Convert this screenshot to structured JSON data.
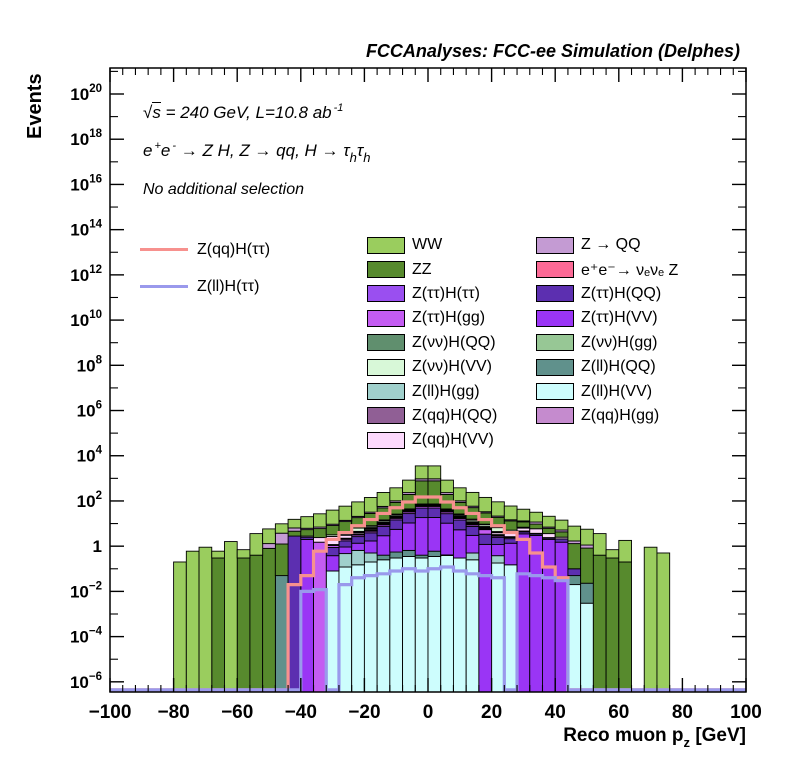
{
  "page": {
    "title": "FCCAnalyses: FCC-ee Simulation (Delphes)"
  },
  "annotations": {
    "line1": {
      "radical": "√",
      "s": "s",
      "rest": " = 240 GeV, L=10.8 ab",
      "exp": "-1"
    },
    "line2": {
      "p1": "e",
      "s1": "+",
      "p2": "e",
      "s2": "-",
      "p3": " → Z H, Z  → qq, H  → τ",
      "s3": "h",
      "p4": "τ",
      "s4": "h"
    },
    "line3": "No additional selection"
  },
  "axes": {
    "y_label": "Events",
    "x_label": {
      "main": "Reco muon p",
      "sub": "z",
      "unit": " [GeV]"
    }
  },
  "legend_lines": [
    {
      "label": "Z(qq)H(ττ)",
      "color": "#f7918e"
    },
    {
      "label": "Z(ll)H(ττ)",
      "color": "#9a99ec"
    }
  ],
  "legend_cols": [
    [
      {
        "label": "WW",
        "color": "#9acd5e"
      },
      {
        "label": "ZZ",
        "color": "#578a2d"
      },
      {
        "label": "Z(ττ)H(ττ)",
        "color": "#9a4ff0"
      },
      {
        "label": "Z(ττ)H(gg)",
        "color": "#c45cf2"
      },
      {
        "label": "Z(νν)H(QQ)",
        "color": "#608f6e"
      },
      {
        "label": "Z(νν)H(VV)",
        "color": "#d8f8d8"
      },
      {
        "label": "Z(ll)H(gg)",
        "color": "#a0d0cc"
      },
      {
        "label": "Z(qq)H(QQ)",
        "color": "#905f95"
      },
      {
        "label": "Z(qq)H(VV)",
        "color": "#fcd9fc"
      }
    ],
    [
      {
        "label": "Z → QQ",
        "color": "#c49bd3"
      },
      {
        "label": "e⁺e⁻→ νₑνₑ Z",
        "color": "#fc6a96"
      },
      {
        "label": "Z(ττ)H(QQ)",
        "color": "#5c2fb0"
      },
      {
        "label": "Z(ττ)H(VV)",
        "color": "#9a35f5"
      },
      {
        "label": "Z(νν)H(gg)",
        "color": "#97c795"
      },
      {
        "label": "Z(ll)H(QQ)",
        "color": "#60918c"
      },
      {
        "label": "Z(ll)H(VV)",
        "color": "#cdfdfd"
      },
      {
        "label": "Z(qq)H(gg)",
        "color": "#c58bce"
      }
    ]
  ],
  "chart_data": {
    "type": "bar",
    "subtype": "stacked-histogram-log-y",
    "title": "FCCAnalyses: FCC-ee Simulation (Delphes)",
    "xlabel": "Reco muon p_z [GeV]",
    "ylabel": "Events",
    "x_range": [
      -100,
      100
    ],
    "y_range_exp": [
      -6.45,
      21.15
    ],
    "grid": false,
    "bins": {
      "start": -100,
      "width": 4,
      "count": 50
    },
    "x_major_ticks": [
      -100,
      -80,
      -60,
      -40,
      -20,
      0,
      20,
      40,
      60,
      80,
      100
    ],
    "x_minor_step": 4,
    "y_label_exponents": [
      -6,
      -4,
      -2,
      0,
      2,
      4,
      6,
      8,
      10,
      12,
      14,
      16,
      18,
      20
    ],
    "series": [
      {
        "name": "Z(ll)H(VV)",
        "color": "#cdfdfd",
        "values": [
          0,
          0,
          0,
          0,
          0,
          0,
          0,
          0,
          0,
          0,
          0,
          0,
          0,
          0,
          0,
          0,
          0,
          0.08,
          0.12,
          0.15,
          0.2,
          0.25,
          0.3,
          0.35,
          0.3,
          0.35,
          0.4,
          0.3,
          0.25,
          0,
          0.18,
          0.15,
          0,
          0,
          0,
          0,
          0.02,
          0.003,
          0,
          0,
          0,
          0,
          0,
          0,
          0,
          0,
          0,
          0,
          0,
          0
        ]
      },
      {
        "name": "Z(ll)H(QQ)",
        "color": "#60918c",
        "values": [
          0,
          0,
          0,
          0,
          0,
          0,
          0,
          0,
          0,
          0,
          0,
          0,
          0,
          0.05,
          0,
          0,
          0,
          0,
          0,
          0,
          0,
          0.15,
          0.25,
          0.3,
          0.1,
          0.25,
          0.01,
          0,
          0,
          0,
          0,
          0,
          0,
          0,
          0,
          0,
          0.03,
          0.02,
          0,
          0,
          0,
          0,
          0,
          0,
          0,
          0,
          0,
          0,
          0,
          0
        ]
      },
      {
        "name": "Z(ll)H(gg)",
        "color": "#a0d0cc",
        "values": [
          0,
          0,
          0,
          0,
          0,
          0,
          0,
          0,
          0,
          0,
          0,
          0,
          0,
          0,
          0,
          0,
          0,
          0,
          0.35,
          0.5,
          0.3,
          0,
          0,
          0,
          0,
          0,
          0,
          0,
          0.25,
          0,
          0.2,
          0,
          0,
          0,
          0,
          0,
          0,
          0,
          0,
          0,
          0,
          0,
          0,
          0,
          0,
          0,
          0,
          0,
          0,
          0
        ]
      },
      {
        "name": "Z(ττ)H(VV)",
        "color": "#9a35f5",
        "values": [
          0,
          0,
          0,
          0,
          0,
          0,
          0,
          0,
          0,
          0,
          0,
          0,
          0,
          0,
          0,
          2,
          0,
          0.3,
          0.45,
          0.7,
          1.2,
          2.5,
          5,
          10,
          18,
          18,
          10,
          5,
          2.5,
          1.2,
          0.8,
          1.2,
          3.5,
          3,
          2,
          1.5,
          0,
          0,
          0,
          0,
          0,
          0,
          0,
          0,
          0,
          0,
          0,
          0,
          0,
          0
        ]
      },
      {
        "name": "Z(ττ)H(QQ)",
        "color": "#5c2fb0",
        "values": [
          0,
          0,
          0,
          0,
          0,
          0,
          0,
          0,
          0,
          0,
          0,
          0,
          0,
          0,
          2.8,
          0.5,
          0,
          0.5,
          0.8,
          1.3,
          2.2,
          4.5,
          9,
          17,
          30,
          30,
          17,
          9,
          4.5,
          2.2,
          1.3,
          0.8,
          0.8,
          0.5,
          0.3,
          0.6,
          0.05,
          0,
          0,
          0,
          0,
          0,
          0,
          0,
          0,
          0,
          0,
          0,
          0,
          0
        ]
      },
      {
        "name": "Z(ττ)H(gg)",
        "color": "#c45cf2",
        "values": [
          0,
          0,
          0,
          0,
          0,
          0,
          0,
          0,
          0,
          0,
          0,
          0,
          0,
          0,
          0,
          0,
          1.5,
          0.2,
          0.3,
          0.45,
          0.7,
          1.3,
          2.5,
          5,
          9,
          9,
          5,
          2.5,
          1.3,
          2,
          0.35,
          0.25,
          0.3,
          0.2,
          0.1,
          0,
          0,
          0,
          0,
          0,
          0,
          0,
          0,
          0,
          0,
          0,
          0,
          0,
          0,
          0
        ]
      },
      {
        "name": "Z(ττ)H(ττ)",
        "color": "#9a4ff0",
        "values": [
          0,
          0,
          0,
          0,
          0,
          0,
          0,
          0,
          0,
          0,
          0,
          0,
          0,
          0,
          0,
          0,
          0,
          0.1,
          0.15,
          0.2,
          0.35,
          0.7,
          1.3,
          2.5,
          5,
          5,
          2.5,
          1.3,
          0.7,
          0.35,
          0.2,
          0.15,
          0.1,
          0,
          0,
          0,
          0,
          0,
          0,
          0,
          0,
          0,
          0,
          0,
          0,
          0,
          0,
          0,
          0,
          0
        ]
      },
      {
        "name": "Z(qq)H(gg)",
        "color": "#c58bce",
        "values": [
          0,
          0,
          0,
          0,
          0,
          0,
          0,
          0,
          0,
          0,
          0,
          0,
          0,
          0,
          0,
          0,
          0,
          0,
          0,
          0.1,
          0.15,
          0.25,
          0.4,
          0.55,
          0.75,
          0.75,
          0.55,
          1.2,
          0.3,
          0.15,
          0.1,
          0,
          0,
          0,
          0,
          0,
          0,
          0,
          0,
          0,
          0,
          0,
          0,
          0,
          0,
          0,
          0,
          0,
          0,
          0
        ]
      },
      {
        "name": "Z(qq)H(QQ)",
        "color": "#905f95",
        "values": [
          0,
          0,
          0,
          0,
          0,
          0,
          0,
          0,
          0,
          0,
          0,
          0,
          0,
          0,
          0,
          0,
          0,
          0,
          0.08,
          0.12,
          0.2,
          0.3,
          0.5,
          0.7,
          1,
          1,
          0.7,
          0.5,
          0.3,
          0.2,
          0.12,
          0.08,
          0,
          0,
          0,
          0,
          0,
          0,
          0,
          0,
          0,
          0,
          0,
          0,
          0,
          0,
          0,
          0,
          0,
          0
        ]
      },
      {
        "name": "Z(qq)H(VV)",
        "color": "#fcd9fc",
        "values": [
          0,
          0,
          0,
          0,
          0,
          0,
          0,
          0,
          0,
          0,
          0,
          0,
          0,
          0,
          0,
          0.3,
          0.9,
          1.5,
          0.8,
          0.5,
          0.6,
          0.8,
          1.1,
          1.5,
          2,
          2,
          1.5,
          1.1,
          0.8,
          0.6,
          0.7,
          1.1,
          1.6,
          2.2,
          1.2,
          0.4,
          0,
          0,
          0,
          0,
          0,
          0,
          0,
          0,
          0,
          0,
          0,
          0,
          0,
          0
        ]
      },
      {
        "name": "Z(νν)H(gg)",
        "color": "#97c795",
        "values": [
          0,
          0,
          0,
          0,
          0,
          0,
          0,
          0,
          0,
          0,
          0,
          0,
          0,
          0,
          0,
          0,
          0,
          0,
          0.2,
          0.3,
          0.45,
          0.7,
          1,
          1.5,
          2,
          1.8,
          1.3,
          0.9,
          0.6,
          0.4,
          0.28,
          0.18,
          0,
          0,
          0,
          0,
          0,
          0,
          0,
          0,
          0,
          0,
          0,
          0,
          0,
          0,
          0,
          0,
          0,
          0
        ]
      },
      {
        "name": "Z(νν)H(QQ)",
        "color": "#608f6e",
        "values": [
          0,
          0,
          0,
          0,
          0,
          0,
          0,
          0,
          0,
          0,
          0,
          0,
          0,
          0,
          0,
          0,
          0,
          0,
          0,
          0.2,
          0.3,
          0.5,
          0.75,
          1.1,
          1.5,
          1.5,
          1.1,
          0.75,
          0.5,
          0.3,
          0.2,
          0,
          0,
          0,
          0,
          0,
          0,
          0,
          0,
          0,
          0,
          0,
          0,
          0,
          0,
          0,
          0,
          0,
          0,
          0
        ]
      },
      {
        "name": "Z(νν)H(VV)",
        "color": "#d8f8d8",
        "values": [
          0,
          0,
          0,
          0,
          0,
          0,
          0,
          0,
          0,
          0,
          0,
          0,
          0,
          0,
          0,
          0,
          0,
          0.5,
          1,
          1.8,
          1.2,
          2,
          3,
          2,
          2.8,
          2.8,
          2,
          3.2,
          2.2,
          1.5,
          2.4,
          1.2,
          0.6,
          0,
          0,
          0,
          0,
          0,
          0,
          0,
          0,
          0,
          0,
          0,
          0,
          0,
          0,
          0,
          0,
          0
        ]
      },
      {
        "name": "e+e-→ νeνe Z",
        "color": "#fc6a96",
        "values": [
          0,
          0,
          0,
          0,
          0,
          0,
          0,
          0,
          0,
          0,
          0,
          0,
          0,
          0,
          0,
          0,
          0,
          0,
          0,
          0,
          0.2,
          0.5,
          1.2,
          2,
          1,
          1.2,
          2.2,
          0.8,
          1.5,
          0.5,
          0.15,
          0,
          0,
          0,
          0,
          0,
          0,
          0,
          0,
          0,
          0,
          0,
          0,
          0,
          0,
          0,
          0,
          0,
          0,
          0
        ]
      },
      {
        "name": "ZZ",
        "color": "#578a2d",
        "values": [
          0,
          0,
          0,
          0,
          0,
          0,
          0,
          0,
          0.3,
          0,
          0.3,
          0.4,
          0.8,
          1.2,
          1.8,
          2.6,
          3.6,
          5,
          8,
          12,
          20,
          35,
          60,
          150,
          700,
          700,
          150,
          60,
          35,
          20,
          12,
          8,
          5,
          3.6,
          2.6,
          1.8,
          1.2,
          0.8,
          0.4,
          0.3,
          0.2,
          0,
          0,
          0,
          0,
          0,
          0,
          0,
          0,
          0
        ]
      },
      {
        "name": "Z → QQ",
        "color": "#c49bd3",
        "values": [
          0,
          0,
          0,
          0,
          0,
          0,
          0,
          0,
          0,
          0,
          0,
          0,
          0.5,
          2.5,
          1.8,
          0.8,
          1,
          1.2,
          1.6,
          2.5,
          4,
          8,
          15,
          40,
          180,
          180,
          40,
          15,
          8,
          4,
          2.5,
          1.6,
          1.2,
          2.2,
          0.8,
          0.9,
          0.4,
          0.3,
          0,
          0,
          0,
          0,
          0,
          0,
          0,
          0,
          0,
          0,
          0,
          0
        ]
      },
      {
        "name": "WW",
        "color": "#9acd5e",
        "values": [
          0,
          0,
          0,
          0,
          0,
          0.2,
          0.6,
          0.9,
          0.3,
          1.6,
          0.4,
          3.2,
          4.5,
          6,
          9,
          14,
          20,
          30,
          45,
          70,
          110,
          180,
          280,
          600,
          2600,
          2600,
          600,
          280,
          180,
          110,
          70,
          45,
          30,
          20,
          14,
          9,
          6,
          4.5,
          3.2,
          0.4,
          1.6,
          0,
          0.9,
          0.5,
          0,
          0,
          0,
          0,
          0,
          0
        ]
      }
    ],
    "overlays": [
      {
        "name": "Z(qq)H(ττ)",
        "color": "#f7918e",
        "values": [
          0,
          0,
          0,
          0,
          0,
          0,
          0,
          0,
          0,
          0,
          0,
          0,
          0,
          0,
          0.02,
          0.05,
          0.6,
          2,
          4,
          8,
          15,
          28,
          50,
          90,
          150,
          150,
          90,
          50,
          28,
          15,
          8,
          4,
          2,
          0.5,
          0.12,
          0.04,
          0,
          0,
          0,
          0,
          0,
          0,
          0,
          0,
          0,
          0,
          0,
          0,
          0,
          0
        ]
      },
      {
        "name": "Z(ll)H(ττ)",
        "color": "#9a99ec",
        "values": [
          0,
          0,
          0,
          0,
          0,
          0,
          0,
          0,
          0,
          0,
          0,
          0,
          0,
          0,
          0,
          0.01,
          0.012,
          0,
          0.02,
          0.04,
          0.05,
          0.06,
          0.08,
          0.1,
          0.08,
          0.1,
          0.12,
          0.08,
          0.06,
          0.05,
          0.04,
          0,
          0.06,
          0.05,
          0.04,
          0.03,
          0,
          0,
          0,
          0,
          0,
          0,
          0,
          0,
          0,
          0,
          0,
          0,
          0,
          0
        ]
      }
    ]
  }
}
